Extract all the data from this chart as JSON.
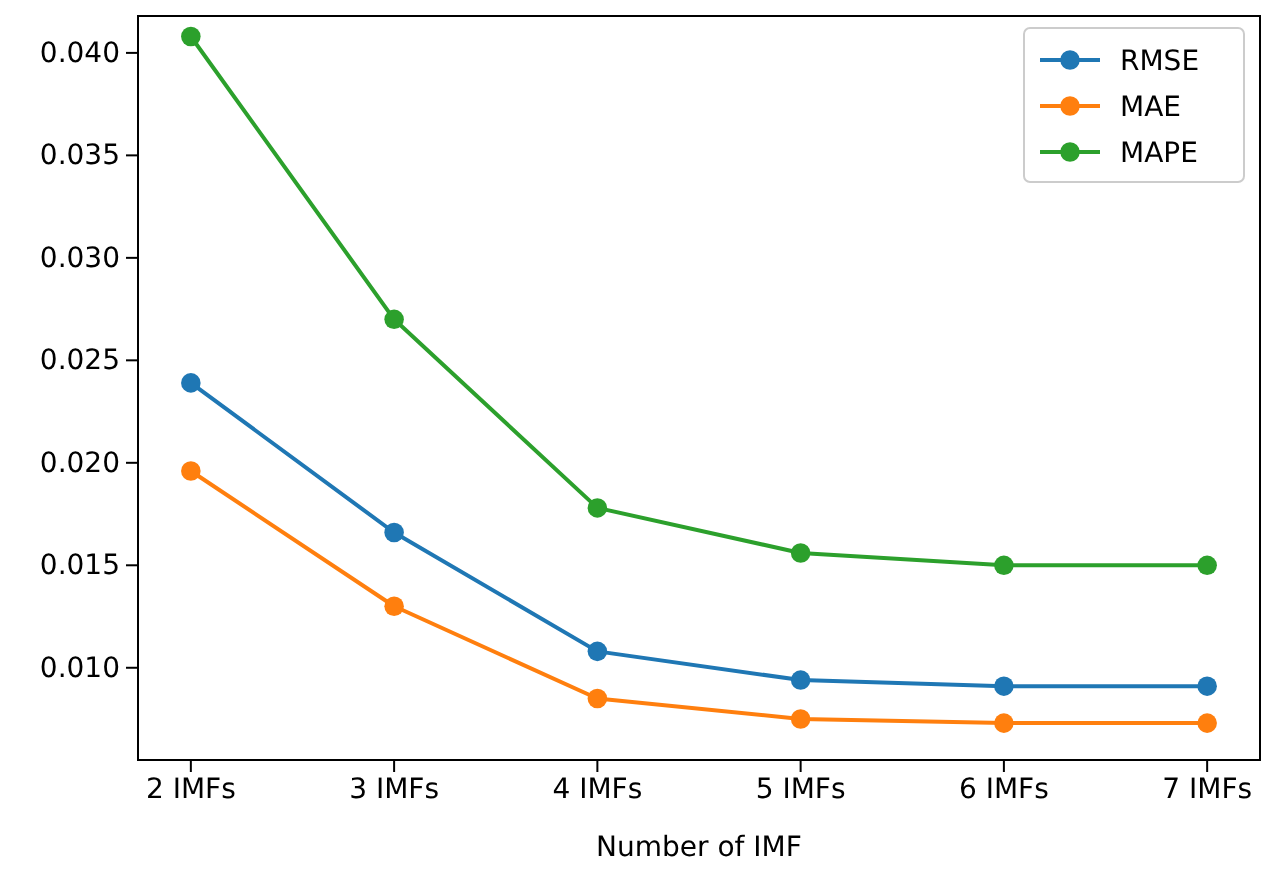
{
  "chart_data": {
    "type": "line",
    "xlabel": "Number of IMF",
    "categories": [
      "2 IMFs",
      "3 IMFs",
      "4 IMFs",
      "5 IMFs",
      "6 IMFs",
      "7 IMFs"
    ],
    "series": [
      {
        "name": "RMSE",
        "color": "#1f77b4",
        "values": [
          0.0239,
          0.0166,
          0.0108,
          0.0094,
          0.0091,
          0.0091
        ]
      },
      {
        "name": "MAE",
        "color": "#ff7f0e",
        "values": [
          0.0196,
          0.013,
          0.0085,
          0.0075,
          0.0073,
          0.0073
        ]
      },
      {
        "name": "MAPE",
        "color": "#2ca02c",
        "values": [
          0.0408,
          0.027,
          0.0178,
          0.0156,
          0.015,
          0.015
        ]
      }
    ],
    "ylim": [
      0.0055,
      0.0418
    ],
    "yticks": [
      {
        "value": 0.01,
        "label": "0.010"
      },
      {
        "value": 0.015,
        "label": "0.015"
      },
      {
        "value": 0.02,
        "label": "0.020"
      },
      {
        "value": 0.025,
        "label": "0.025"
      },
      {
        "value": 0.03,
        "label": "0.030"
      },
      {
        "value": 0.035,
        "label": "0.035"
      },
      {
        "value": 0.04,
        "label": "0.040"
      }
    ],
    "marker": "circle",
    "line_style": "solid",
    "legend": "top right",
    "grid": false
  }
}
